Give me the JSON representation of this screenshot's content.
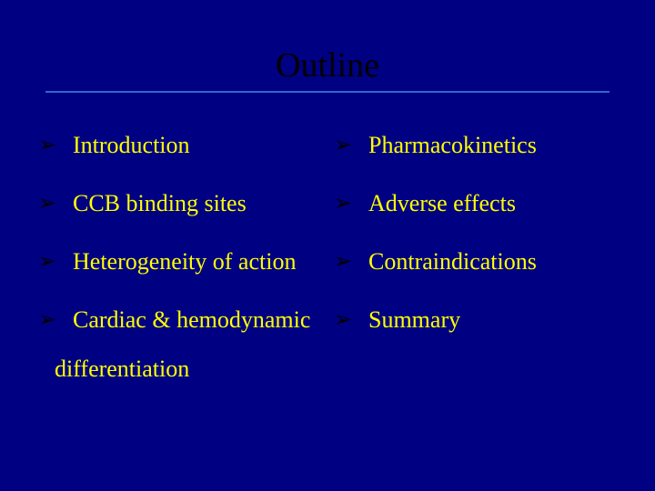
{
  "slide": {
    "title": "Outline",
    "background_color": "#000083",
    "title_color": "#000000",
    "title_fontsize": 38,
    "divider_color": "#3366cc",
    "bullet_glyph": "➢",
    "bullet_color": "#000000",
    "text_color": "#ffff00",
    "item_fontsize": 26,
    "left_column": [
      "Introduction",
      "CCB binding sites",
      "Heterogeneity of action",
      "Cardiac & hemodynamic"
    ],
    "left_continuation": "differentiation",
    "right_column": [
      "Pharmacokinetics",
      "Adverse effects",
      "Contraindications",
      "Summary"
    ]
  }
}
